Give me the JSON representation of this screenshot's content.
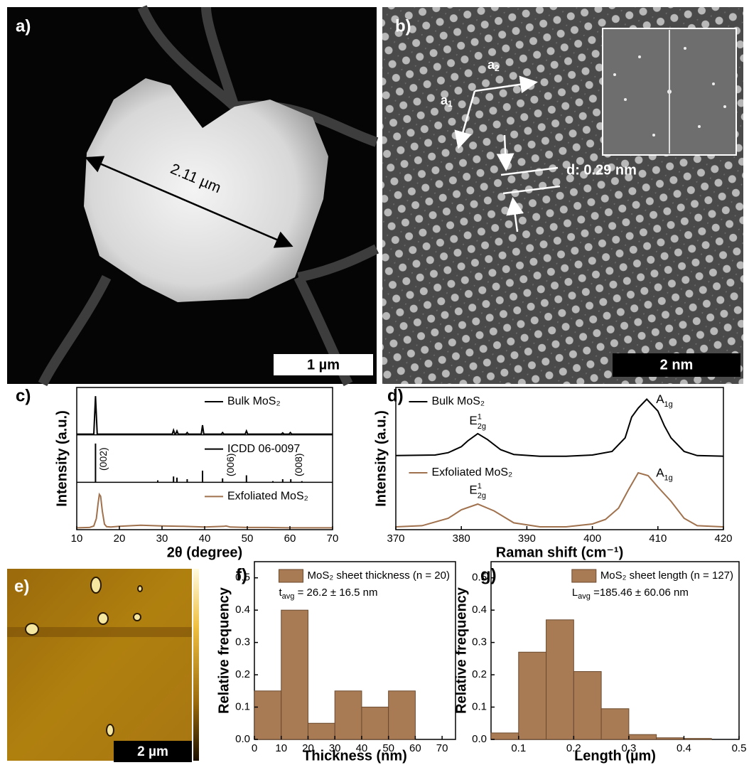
{
  "panel_a": {
    "label": "a)",
    "measurement": "2.11 µm",
    "scale_bar": "1 µm"
  },
  "panel_b": {
    "label": "b)",
    "a1": {
      "text": "a",
      "sub": "1"
    },
    "a2": {
      "text": "a",
      "sub": "2"
    },
    "spacing": "d: 0.29 nm",
    "scale_bar": "2 nm"
  },
  "panel_e": {
    "label": "e)",
    "scale_bar": "2 µm"
  },
  "chart_data": [
    {
      "type": "line",
      "title": "c)",
      "xlabel": "2θ (degree)",
      "ylabel": "Intensity (a.u.)",
      "xlim": [
        10,
        70
      ],
      "xticks": [
        10,
        20,
        30,
        40,
        50,
        60,
        70
      ],
      "legend": "right",
      "separators": true,
      "series": [
        {
          "name": "Bulk MoS₂",
          "color": "#000000",
          "x": [
            10,
            14.0,
            14.4,
            14.8,
            29,
            32.4,
            32.7,
            33.0,
            33.2,
            33.5,
            33.8,
            35.6,
            35.9,
            36.2,
            39.2,
            39.5,
            39.8,
            43.9,
            44.2,
            44.5,
            49.5,
            49.8,
            50.1,
            58.0,
            58.3,
            58.6,
            59.8,
            60.1,
            60.4,
            70
          ],
          "values": [
            0.02,
            0.02,
            1,
            0.02,
            0.02,
            0.02,
            0.12,
            0.02,
            0.02,
            0.1,
            0.02,
            0.02,
            0.06,
            0.02,
            0.02,
            0.25,
            0.02,
            0.02,
            0.06,
            0.02,
            0.02,
            0.1,
            0.02,
            0.02,
            0.05,
            0.02,
            0.02,
            0.06,
            0.02,
            0.02
          ],
          "ylim": [
            0,
            1.15
          ]
        },
        {
          "name": "ICDD 06-0097",
          "color": "#000000",
          "style": "sticks",
          "x": [
            14.4,
            29.0,
            32.7,
            33.5,
            35.9,
            39.5,
            44.2,
            49.8,
            56.0,
            58.3,
            60.2,
            62.8
          ],
          "values": [
            1,
            0.05,
            0.15,
            0.12,
            0.08,
            0.3,
            0.1,
            0.18,
            0.03,
            0.08,
            0.08,
            0.03
          ],
          "ylim": [
            0,
            1.15
          ],
          "annotations": [
            {
              "text": "(002)",
              "x": 14.4,
              "y": 0.6
            },
            {
              "text": "(006)",
              "x": 44.2,
              "y": 0.45
            },
            {
              "text": "(008)",
              "x": 60.2,
              "y": 0.45
            }
          ]
        },
        {
          "name": "Exfoliated MoS₂",
          "color": "#a0714d",
          "x": [
            10,
            13,
            14,
            14.6,
            15,
            15.3,
            15.6,
            16,
            16.5,
            17,
            18,
            20,
            25,
            30,
            35,
            40,
            44.5,
            45,
            46,
            50,
            55,
            60,
            65,
            70
          ],
          "values": [
            0.05,
            0.06,
            0.1,
            0.3,
            0.7,
            0.95,
            0.9,
            0.5,
            0.15,
            0.08,
            0.07,
            0.09,
            0.12,
            0.1,
            0.09,
            0.07,
            0.09,
            0.1,
            0.07,
            0.06,
            0.06,
            0.05,
            0.05,
            0.05
          ],
          "ylim": [
            0,
            1.2
          ]
        }
      ]
    },
    {
      "type": "line",
      "title": "d)",
      "xlabel": "Raman shift (cm⁻¹)",
      "ylabel": "Intensity (a.u.)",
      "xlim": [
        370,
        420
      ],
      "xticks": [
        370,
        380,
        390,
        400,
        410,
        420
      ],
      "legend": "left",
      "separators": false,
      "series": [
        {
          "name": "Bulk MoS₂",
          "color": "#000000",
          "x": [
            370,
            376,
            378,
            380,
            381,
            382.5,
            384,
            386,
            388,
            392,
            396,
            400,
            403,
            405,
            406,
            407,
            408.3,
            410,
            411,
            412,
            414,
            416,
            420
          ],
          "values": [
            0.05,
            0.06,
            0.1,
            0.2,
            0.3,
            0.42,
            0.32,
            0.15,
            0.07,
            0.04,
            0.04,
            0.06,
            0.12,
            0.35,
            0.7,
            0.85,
            1,
            0.8,
            0.55,
            0.35,
            0.12,
            0.05,
            0.04
          ],
          "ylim": [
            0,
            1.15
          ],
          "annotations": [
            {
              "text": "E",
              "sup": "1",
              "sub": "2g",
              "x": 382.5,
              "y": 0.62
            },
            {
              "text": "A",
              "sub": "1g",
              "x": 411,
              "y": 0.98
            }
          ]
        },
        {
          "name": "Exfoliated MoS₂",
          "color": "#a0714d",
          "x": [
            370,
            374,
            378,
            380,
            382.5,
            385,
            388,
            392,
            396,
            400,
            402,
            404,
            405.5,
            407,
            408.5,
            410,
            412,
            414,
            416,
            420
          ],
          "values": [
            0.05,
            0.07,
            0.2,
            0.35,
            0.45,
            0.33,
            0.12,
            0.05,
            0.05,
            0.1,
            0.18,
            0.38,
            0.7,
            1,
            0.95,
            0.75,
            0.5,
            0.2,
            0.07,
            0.05
          ],
          "ylim": [
            0,
            1.2
          ],
          "annotations": [
            {
              "text": "E",
              "sup": "1",
              "sub": "2g",
              "x": 382.5,
              "y": 0.68
            },
            {
              "text": "A",
              "sub": "1g",
              "x": 411,
              "y": 0.98
            }
          ]
        }
      ]
    },
    {
      "type": "histogram",
      "title": "f)",
      "xlabel": "Thickness (nm)",
      "ylabel": "Relative frequency",
      "xlim": [
        0,
        75
      ],
      "xticks": [
        0,
        10,
        20,
        30,
        40,
        50,
        60,
        70
      ],
      "ylim": [
        0,
        0.55
      ],
      "yticks": [
        {
          "value": 0,
          "label": "0.0"
        },
        0.1,
        0.2,
        0.3,
        0.4,
        0.5
      ],
      "bins": [
        0,
        10,
        20,
        30,
        40,
        50,
        60
      ],
      "values": [
        0.15,
        0.4,
        0.05,
        0.15,
        0.1,
        0.15
      ],
      "name": "MoS₂ sheet thickness (n = 20)",
      "color": "#a87b55",
      "edgecolor": "#6b4a2e",
      "legend": "upper right",
      "stat": {
        "symbol": "t",
        "sub": "avg",
        "text": " = 26.2 ± 16.5 nm"
      }
    },
    {
      "type": "histogram",
      "title": "g)",
      "xlabel": "Length (µm)",
      "ylabel": "Relative frequency",
      "xlim": [
        0.05,
        0.5
      ],
      "xticks": [
        0.1,
        0.2,
        0.3,
        0.4,
        0.5
      ],
      "ylim": [
        0,
        0.55
      ],
      "yticks": [
        {
          "value": 0,
          "label": "0.0"
        },
        0.1,
        0.2,
        0.3,
        0.4,
        0.5
      ],
      "bins": [
        0.05,
        0.1,
        0.15,
        0.2,
        0.25,
        0.3,
        0.35,
        0.4,
        0.45
      ],
      "values": [
        0.02,
        0.27,
        0.37,
        0.21,
        0.095,
        0.015,
        0.005,
        0.003
      ],
      "name": "MoS₂ sheet length (n = 127)",
      "color": "#a87b55",
      "edgecolor": "#6b4a2e",
      "legend": "upper right",
      "stat": {
        "symbol": "L",
        "sub": "avg",
        "text": " =185.46 ± 60.06 nm"
      }
    }
  ]
}
